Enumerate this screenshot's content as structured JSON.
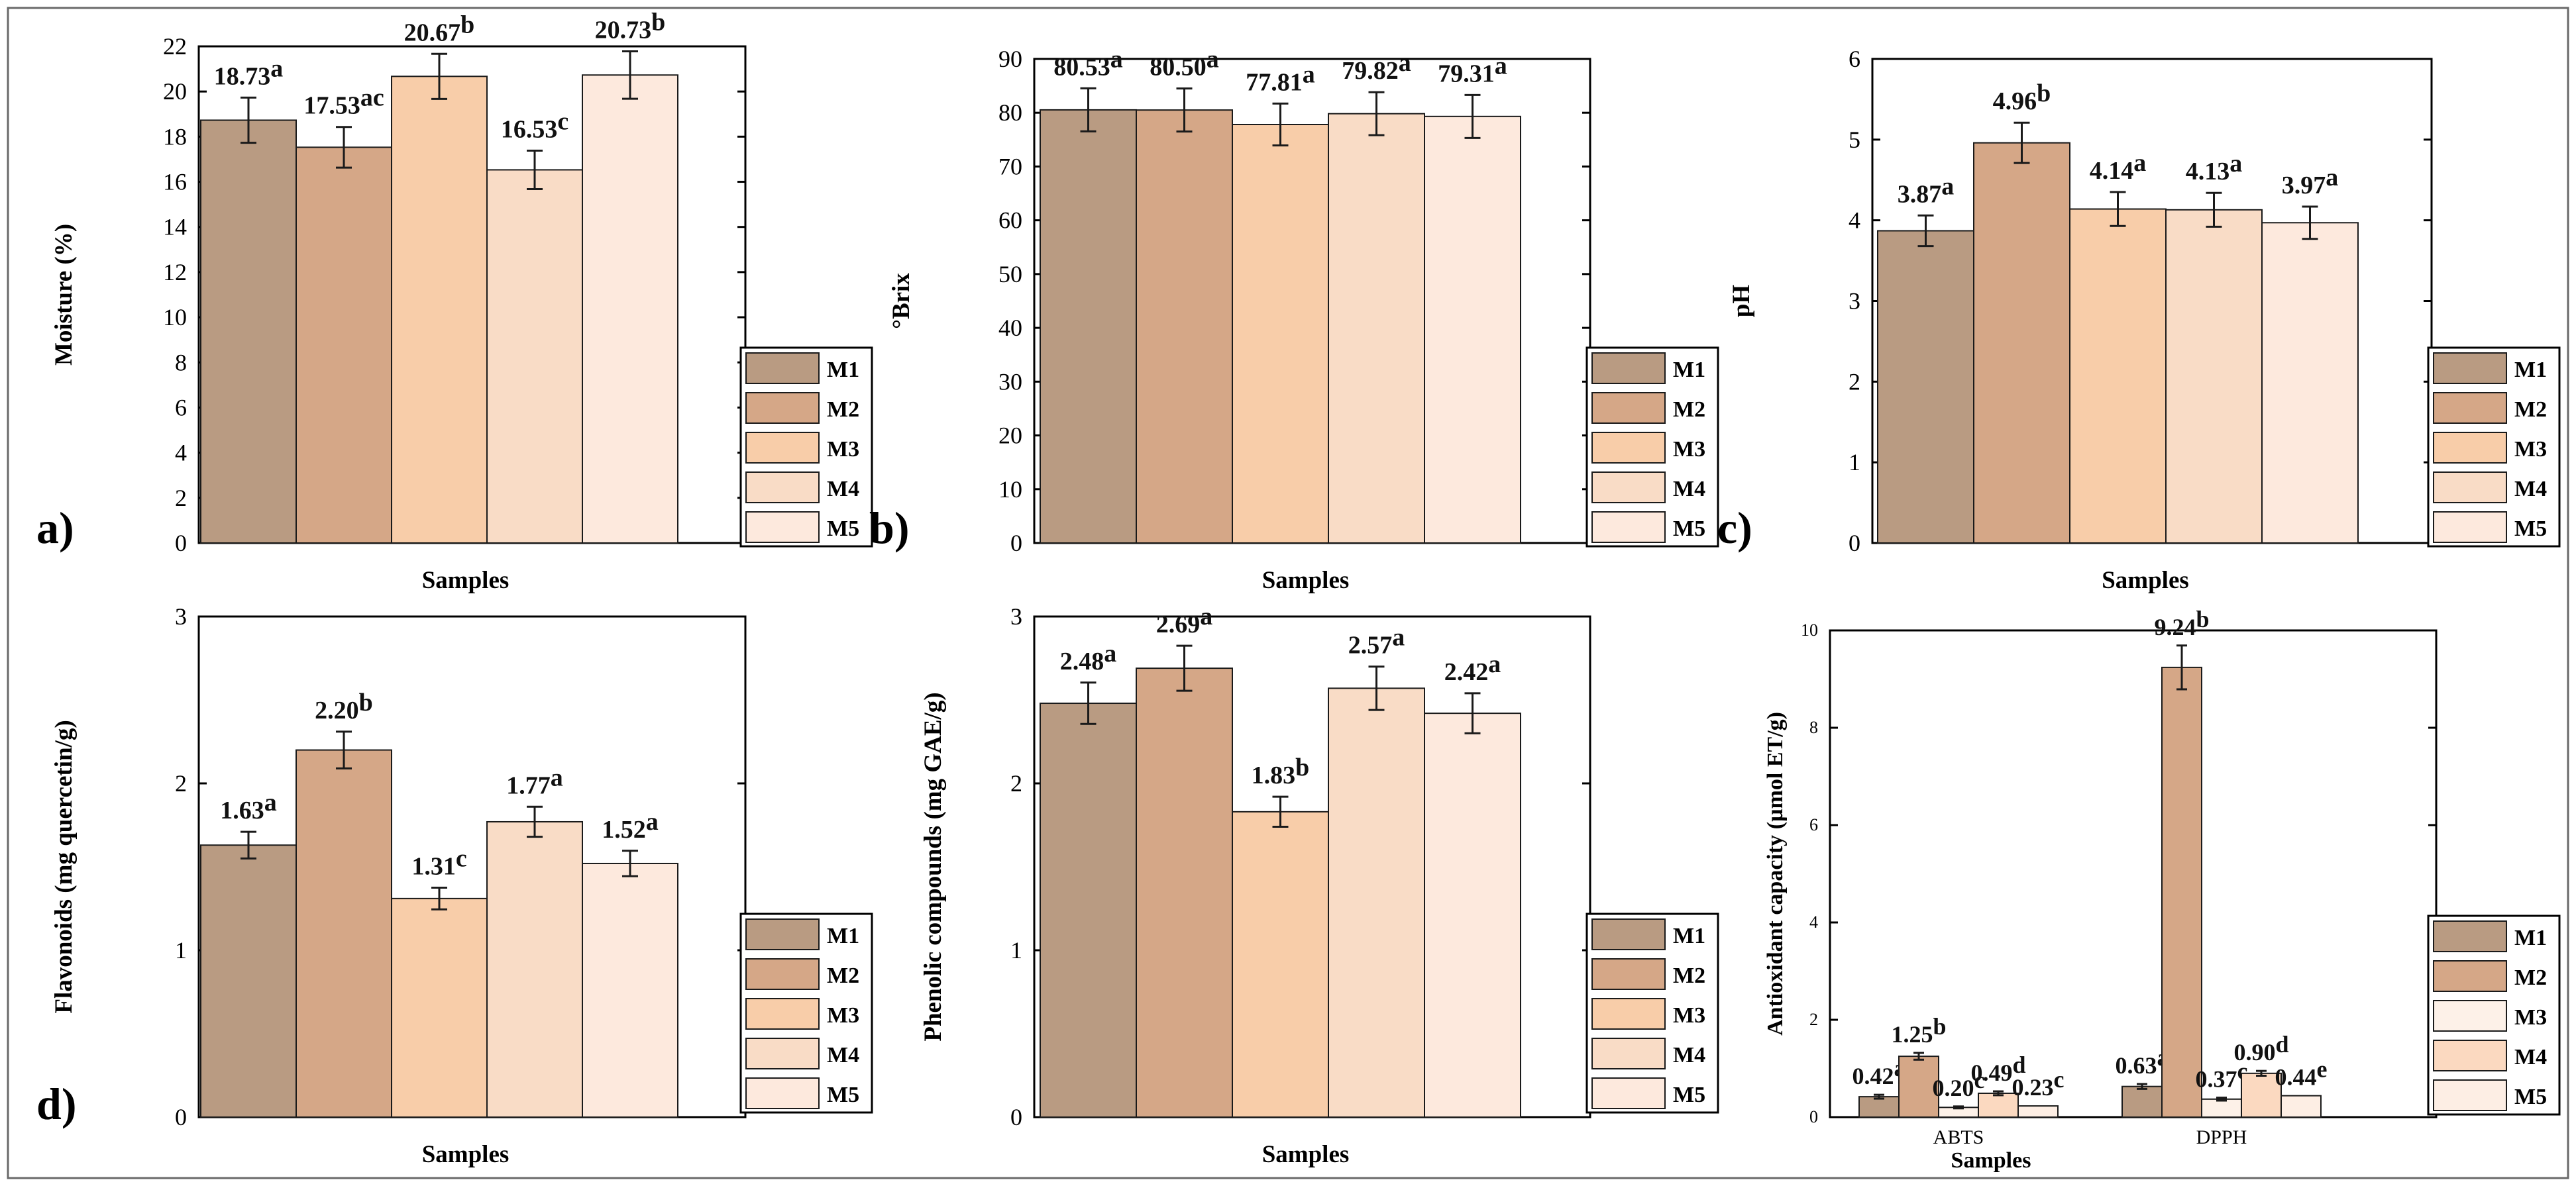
{
  "chart_data": [
    {
      "type": "bar",
      "panel_label": "a)",
      "ylabel": "Moisture (%)",
      "xlabel": "Samples",
      "ylim": [
        0,
        22
      ],
      "yticks": [
        "0",
        "2",
        "4",
        "6",
        "8",
        "10",
        "12",
        "14",
        "16",
        "18",
        "20",
        "22"
      ],
      "ytick_values": [
        0,
        2,
        4,
        6,
        8,
        10,
        12,
        14,
        16,
        18,
        20,
        22
      ],
      "series": [
        {
          "name": "M1",
          "color": "#b99b82",
          "values": [
            18.73
          ],
          "errors": [
            1.0
          ],
          "labels": [
            "18.73"
          ],
          "letters": [
            "a"
          ]
        },
        {
          "name": "M2",
          "color": "#d5a787",
          "values": [
            17.53
          ],
          "errors": [
            0.9
          ],
          "labels": [
            "17.53"
          ],
          "letters": [
            "ac"
          ]
        },
        {
          "name": "M3",
          "color": "#f8cda9",
          "values": [
            20.67
          ],
          "errors": [
            1.0
          ],
          "labels": [
            "20.67"
          ],
          "letters": [
            "b"
          ]
        },
        {
          "name": "M4",
          "color": "#f9dcc6",
          "values": [
            16.53
          ],
          "errors": [
            0.85
          ],
          "labels": [
            "16.53"
          ],
          "letters": [
            "c"
          ]
        },
        {
          "name": "M5",
          "color": "#fde9dd",
          "values": [
            20.73
          ],
          "errors": [
            1.05
          ],
          "labels": [
            "20.73"
          ],
          "letters": [
            "b"
          ]
        }
      ],
      "categories": [
        ""
      ],
      "legend": [
        "M1",
        "M2",
        "M3",
        "M4",
        "M5"
      ]
    },
    {
      "type": "bar",
      "panel_label": "b)",
      "ylabel": "°Brix",
      "xlabel": "Samples",
      "ylim": [
        0,
        90
      ],
      "yticks": [
        "0",
        "10",
        "20",
        "30",
        "40",
        "50",
        "60",
        "70",
        "80",
        "90"
      ],
      "ytick_values": [
        0,
        10,
        20,
        30,
        40,
        50,
        60,
        70,
        80,
        90
      ],
      "series": [
        {
          "name": "M1",
          "color": "#b99b82",
          "values": [
            80.53
          ],
          "errors": [
            4.0
          ],
          "labels": [
            "80.53"
          ],
          "letters": [
            "a"
          ]
        },
        {
          "name": "M2",
          "color": "#d5a787",
          "values": [
            80.5
          ],
          "errors": [
            4.0
          ],
          "labels": [
            "80.50"
          ],
          "letters": [
            "a"
          ]
        },
        {
          "name": "M3",
          "color": "#f8cda9",
          "values": [
            77.81
          ],
          "errors": [
            3.9
          ],
          "labels": [
            "77.81"
          ],
          "letters": [
            "a"
          ]
        },
        {
          "name": "M4",
          "color": "#f9dcc6",
          "values": [
            79.82
          ],
          "errors": [
            4.0
          ],
          "labels": [
            "79.82"
          ],
          "letters": [
            "a"
          ]
        },
        {
          "name": "M5",
          "color": "#fde9dd",
          "values": [
            79.31
          ],
          "errors": [
            4.0
          ],
          "labels": [
            "79.31"
          ],
          "letters": [
            "a"
          ]
        }
      ],
      "categories": [
        ""
      ],
      "legend": [
        "M1",
        "M2",
        "M3",
        "M4",
        "M5"
      ]
    },
    {
      "type": "bar",
      "panel_label": "c)",
      "ylabel": "pH",
      "xlabel": "Samples",
      "ylim": [
        0,
        6
      ],
      "yticks": [
        "0",
        "1",
        "2",
        "3",
        "4",
        "5",
        "6"
      ],
      "ytick_values": [
        0,
        1,
        2,
        3,
        4,
        5,
        6
      ],
      "series": [
        {
          "name": "M1",
          "color": "#b99b82",
          "values": [
            3.87
          ],
          "errors": [
            0.19
          ],
          "labels": [
            "3.87"
          ],
          "letters": [
            "a"
          ]
        },
        {
          "name": "M2",
          "color": "#d5a787",
          "values": [
            4.96
          ],
          "errors": [
            0.25
          ],
          "labels": [
            "4.96"
          ],
          "letters": [
            "b"
          ]
        },
        {
          "name": "M3",
          "color": "#f8cda9",
          "values": [
            4.14
          ],
          "errors": [
            0.21
          ],
          "labels": [
            "4.14"
          ],
          "letters": [
            "a"
          ]
        },
        {
          "name": "M4",
          "color": "#f9dcc6",
          "values": [
            4.13
          ],
          "errors": [
            0.21
          ],
          "labels": [
            "4.13"
          ],
          "letters": [
            "a"
          ]
        },
        {
          "name": "M5",
          "color": "#fde9dd",
          "values": [
            3.97
          ],
          "errors": [
            0.2
          ],
          "labels": [
            "3.97"
          ],
          "letters": [
            "a"
          ]
        }
      ],
      "categories": [
        ""
      ],
      "legend": [
        "M1",
        "M2",
        "M3",
        "M4",
        "M5"
      ]
    },
    {
      "type": "bar",
      "panel_label": "d)",
      "ylabel": "Flavonoids (mg quercetin/g)",
      "xlabel": "Samples",
      "ylim": [
        0,
        3
      ],
      "yticks": [
        "0",
        "1",
        "2",
        "3"
      ],
      "ytick_values": [
        0,
        1,
        2,
        3
      ],
      "series": [
        {
          "name": "M1",
          "color": "#b99b82",
          "values": [
            1.63
          ],
          "errors": [
            0.08
          ],
          "labels": [
            "1.63"
          ],
          "letters": [
            "a"
          ]
        },
        {
          "name": "M2",
          "color": "#d5a787",
          "values": [
            2.2
          ],
          "errors": [
            0.11
          ],
          "labels": [
            "2.20"
          ],
          "letters": [
            "b"
          ]
        },
        {
          "name": "M3",
          "color": "#f8cda9",
          "values": [
            1.31
          ],
          "errors": [
            0.065
          ],
          "labels": [
            "1.31"
          ],
          "letters": [
            "c"
          ]
        },
        {
          "name": "M4",
          "color": "#f9dcc6",
          "values": [
            1.77
          ],
          "errors": [
            0.09
          ],
          "labels": [
            "1.77"
          ],
          "letters": [
            "a"
          ]
        },
        {
          "name": "M5",
          "color": "#fde9dd",
          "values": [
            1.52
          ],
          "errors": [
            0.076
          ],
          "labels": [
            "1.52"
          ],
          "letters": [
            "a"
          ]
        }
      ],
      "categories": [
        ""
      ],
      "legend": [
        "M1",
        "M2",
        "M3",
        "M4",
        "M5"
      ]
    },
    {
      "type": "bar",
      "panel_label": "",
      "ylabel": "Phenolic compounds (mg GAE/g)",
      "xlabel": "Samples",
      "ylim": [
        0,
        3
      ],
      "yticks": [
        "0",
        "1",
        "2",
        "3"
      ],
      "ytick_values": [
        0,
        1,
        2,
        3
      ],
      "series": [
        {
          "name": "M1",
          "color": "#b99b82",
          "values": [
            2.48
          ],
          "errors": [
            0.124
          ],
          "labels": [
            "2.48"
          ],
          "letters": [
            "a"
          ]
        },
        {
          "name": "M2",
          "color": "#d5a787",
          "values": [
            2.69
          ],
          "errors": [
            0.135
          ],
          "labels": [
            "2.69"
          ],
          "letters": [
            "a"
          ]
        },
        {
          "name": "M3",
          "color": "#f8cda9",
          "values": [
            1.83
          ],
          "errors": [
            0.09
          ],
          "labels": [
            "1.83"
          ],
          "letters": [
            "b"
          ]
        },
        {
          "name": "M4",
          "color": "#f9dcc6",
          "values": [
            2.57
          ],
          "errors": [
            0.13
          ],
          "labels": [
            "2.57"
          ],
          "letters": [
            "a"
          ]
        },
        {
          "name": "M5",
          "color": "#fde9dd",
          "values": [
            2.42
          ],
          "errors": [
            0.12
          ],
          "labels": [
            "2.42"
          ],
          "letters": [
            "a"
          ]
        }
      ],
      "categories": [
        ""
      ],
      "legend": [
        "M1",
        "M2",
        "M3",
        "M4",
        "M5"
      ]
    },
    {
      "type": "bar",
      "panel_label": "",
      "ylabel": "Antioxidant capacity (µmol ET/g)",
      "xlabel": "Samples",
      "ylim": [
        0,
        10
      ],
      "yticks": [
        "0",
        "2",
        "4",
        "6",
        "8",
        "10"
      ],
      "ytick_values": [
        0,
        2,
        4,
        6,
        8,
        10
      ],
      "categories": [
        "ABTS",
        "DPPH"
      ],
      "series": [
        {
          "name": "M1",
          "color": "#b99b82",
          "values": [
            0.42,
            0.63
          ],
          "errors": [
            0.04,
            0.05
          ],
          "labels": [
            "0.42",
            "0.63"
          ],
          "letters": [
            "a",
            "a"
          ]
        },
        {
          "name": "M2",
          "color": "#d5a787",
          "values": [
            1.25,
            9.24
          ],
          "errors": [
            0.07,
            0.45
          ],
          "labels": [
            "1.25",
            "9.24"
          ],
          "letters": [
            "b",
            "b"
          ]
        },
        {
          "name": "M3",
          "color": "#fdf1e8",
          "values": [
            0.2,
            0.37
          ],
          "errors": [
            0.02,
            0.03
          ],
          "labels": [
            "0.20",
            "0.37"
          ],
          "letters": [
            "c",
            "c"
          ]
        },
        {
          "name": "M4",
          "color": "#fbd9c0",
          "values": [
            0.49,
            0.9
          ],
          "errors": [
            0.04,
            0.05
          ],
          "labels": [
            "0.49",
            "0.90"
          ],
          "letters": [
            "d",
            "d"
          ]
        },
        {
          "name": "M5",
          "color": "#fdeee4",
          "values": [
            0.23,
            0.44
          ],
          "errors": [
            0.0,
            0.0
          ],
          "labels": [
            "0.23",
            "0.44"
          ],
          "letters": [
            "c",
            "e"
          ]
        }
      ],
      "legend": [
        "M1",
        "M2",
        "M3",
        "M4",
        "M5"
      ]
    }
  ]
}
